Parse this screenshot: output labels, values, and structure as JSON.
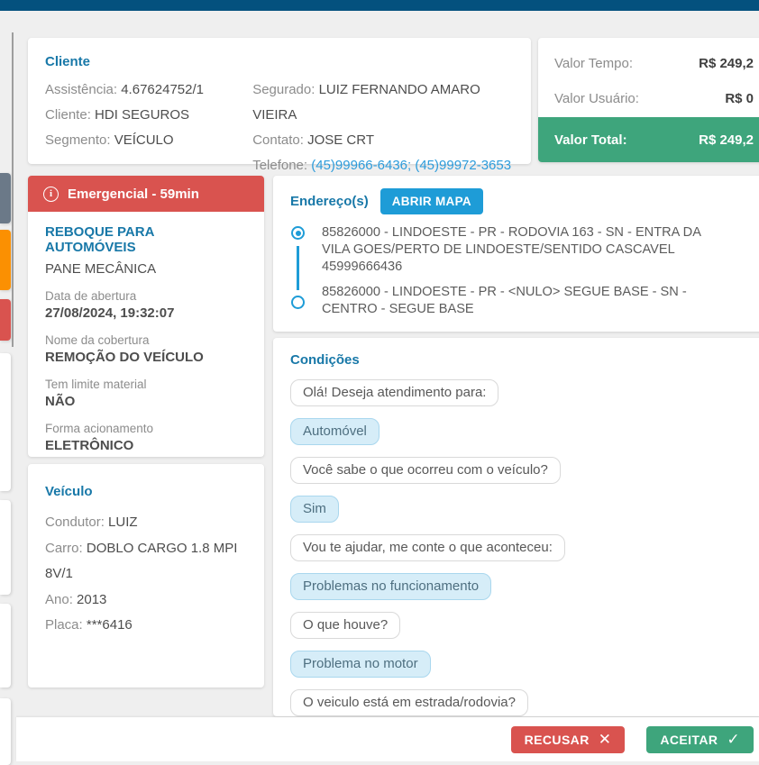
{
  "colors": {
    "topbar": "#04517E",
    "heading": "#1878A8",
    "link": "#2D9CDB",
    "accent_blue": "#1E9CD7",
    "red": "#D9534F",
    "green": "#3EA57C",
    "orange": "#FB9002",
    "slate": "#6B7988",
    "page_bg": "#EFEFEF",
    "text_dark": "#4D4D4D",
    "text_gray": "#8C8C8C"
  },
  "client_card": {
    "title": "Cliente",
    "left_rows": [
      {
        "label": "Assistência:",
        "value": "4.67624752/1",
        "value_class": ""
      },
      {
        "label": "Cliente:",
        "value": "HDI SEGUROS",
        "value_class": ""
      },
      {
        "label": "Segmento:",
        "value": "VEÍCULO",
        "value_class": ""
      }
    ],
    "right_rows": [
      {
        "label": "Segurado:",
        "value": "LUIZ FERNANDO AMARO VIEIRA",
        "value_class": ""
      },
      {
        "label": "Contato:",
        "value": "JOSE CRT",
        "value_class": ""
      },
      {
        "label": "Telefone:",
        "value": "(45)99966-6436; (45)99972-3653",
        "value_class": "link"
      }
    ]
  },
  "pricing_card": {
    "rows": [
      {
        "label": "Valor Tempo:",
        "value": "R$ 249,2"
      },
      {
        "label": "Valor Usuário:",
        "value": "R$ 0"
      }
    ],
    "total": {
      "label": "Valor Total:",
      "value": "R$ 249,2"
    }
  },
  "service_card": {
    "banner": "Emergencial - 59min",
    "info_icon_glyph": "i",
    "service_name": "REBOQUE PARA AUTOMÓVEIS",
    "problem": "PANE MECÂNICA",
    "fields": [
      {
        "label": "Data de abertura",
        "value": "27/08/2024, 19:32:07"
      },
      {
        "label": "Nome da cobertura",
        "value": "REMOÇÃO DO VEÍCULO"
      },
      {
        "label": "Tem limite material",
        "value": "NÃO"
      },
      {
        "label": "Forma acionamento",
        "value": "ELETRÔNICO"
      }
    ]
  },
  "vehicle_card": {
    "title": "Veículo",
    "rows": [
      {
        "label": "Condutor:",
        "value": "LUIZ"
      },
      {
        "label": "Carro:",
        "value": "DOBLO CARGO 1.8 MPI 8V/1"
      },
      {
        "label": "Ano:",
        "value": "2013"
      },
      {
        "label": "Placa:",
        "value": "***6416"
      }
    ]
  },
  "addresses_card": {
    "title": "Endereço(s)",
    "map_button_label": "ABRIR MAPA",
    "addresses": [
      {
        "marker": "origin",
        "text": "85826000 - LINDOESTE - PR - RODOVIA 163 - SN - ENTRA DA VILA GOES/PERTO DE LINDOESTE/SENTIDO CASCAVEL 45999666436"
      },
      {
        "marker": "destination",
        "text": "85826000 - LINDOESTE - PR - <NULO> SEGUE BASE - SN - CENTRO - SEGUE BASE"
      }
    ]
  },
  "conditions_card": {
    "title": "Condições",
    "messages": [
      {
        "text": "Olá! Deseja atendimento para:",
        "type": "question"
      },
      {
        "text": "Automóvel",
        "type": "answer"
      },
      {
        "text": "Você sabe o que ocorreu com o veículo?",
        "type": "question"
      },
      {
        "text": "Sim",
        "type": "answer"
      },
      {
        "text": "Vou te ajudar, me conte o que aconteceu:",
        "type": "question"
      },
      {
        "text": "Problemas no funcionamento",
        "type": "answer"
      },
      {
        "text": "O que houve?",
        "type": "question"
      },
      {
        "text": "Problema no motor",
        "type": "answer"
      },
      {
        "text": "O veiculo está em estrada/rodovia?",
        "type": "question"
      }
    ]
  },
  "footer": {
    "reject_label": "RECUSAR",
    "reject_icon_glyph": "✕",
    "accept_label": "ACEITAR",
    "accept_icon_glyph": "✓"
  }
}
